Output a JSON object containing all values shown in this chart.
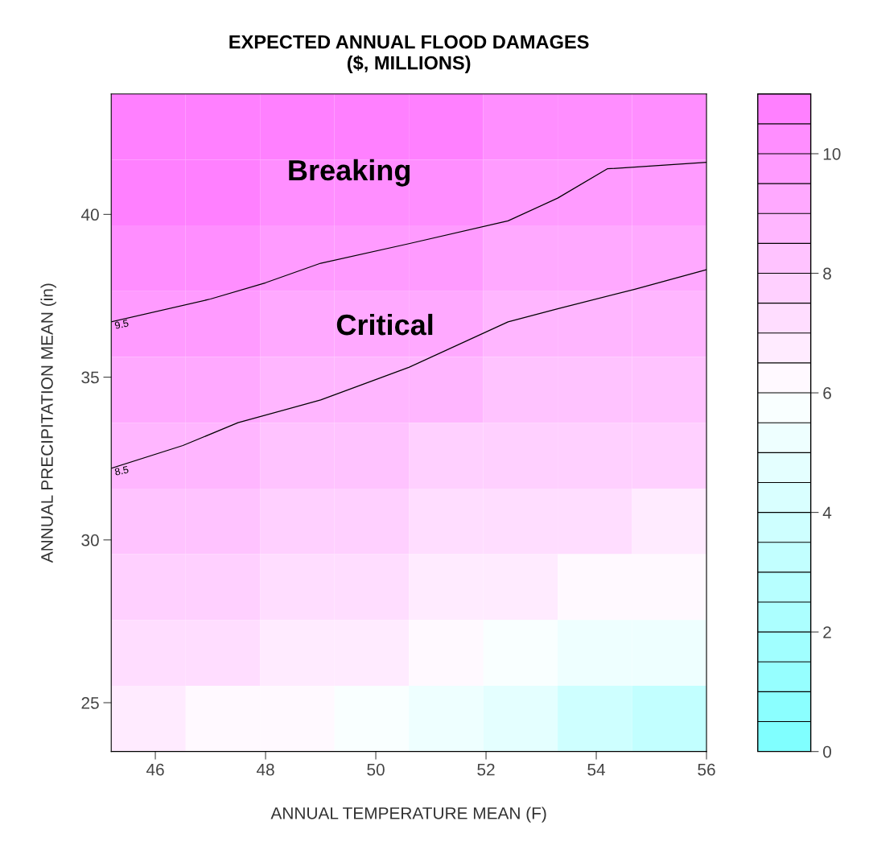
{
  "chart_data": {
    "type": "heatmap",
    "title": "EXPECTED ANNUAL FLOOD DAMAGES\n($, MILLIONS)",
    "xlabel": "ANNUAL TEMPERATURE MEAN (F)",
    "ylabel": "ANNUAL PRECIPITATION MEAN (in)",
    "x": [
      45.875,
      47.225,
      48.575,
      49.925,
      51.275,
      52.625,
      53.975,
      55.325
    ],
    "y": [
      42.69,
      40.67,
      38.65,
      36.63,
      34.61,
      32.59,
      30.57,
      28.55,
      26.53,
      24.51
    ],
    "cells": [
      [
        11,
        11,
        10.5,
        10.5,
        10.5,
        10,
        10,
        10
      ],
      [
        10.5,
        10.5,
        10,
        10,
        10,
        9.5,
        9.5,
        9.5
      ],
      [
        10,
        10,
        9.5,
        9.5,
        9.5,
        9,
        9,
        9
      ],
      [
        9.5,
        9.5,
        9,
        9,
        9,
        8.5,
        8.5,
        8.5
      ],
      [
        9,
        9,
        8.5,
        8.5,
        8.5,
        8,
        8,
        8
      ],
      [
        8.5,
        8.5,
        8,
        8,
        7.5,
        7.5,
        7.5,
        7.5
      ],
      [
        8,
        8,
        7.5,
        7.5,
        7,
        7,
        7,
        6.5
      ],
      [
        7.5,
        7.5,
        7,
        7,
        6.5,
        6.5,
        6,
        6
      ],
      [
        7,
        7,
        6.5,
        6.5,
        6,
        5.5,
        5,
        5
      ],
      [
        6.5,
        6,
        6,
        5.5,
        5,
        4.5,
        3.5,
        3
      ]
    ],
    "clim": [
      0,
      11
    ],
    "cticks": [
      0,
      2,
      4,
      6,
      8,
      10
    ],
    "xlim": [
      45.2,
      56
    ],
    "xticks": [
      46,
      48,
      50,
      52,
      54,
      56
    ],
    "ylim": [
      23.5,
      43.7
    ],
    "yticks": [
      25,
      30,
      35,
      40
    ],
    "series": [
      {
        "type": "line",
        "color": "#000000",
        "x": [
          45.2,
          47,
          48,
          49,
          50.6,
          52.4,
          53.3,
          54.2,
          56
        ],
        "values": [
          36.7,
          37.4,
          37.9,
          38.5,
          39.1,
          39.8,
          40.5,
          41.4,
          41.6
        ]
      },
      {
        "type": "line",
        "color": "#000000",
        "x": [
          45.2,
          46.5,
          47.5,
          49,
          50.6,
          52.4,
          53.3,
          54.7,
          56
        ],
        "values": [
          32.2,
          32.9,
          33.6,
          34.3,
          35.3,
          36.7,
          37.1,
          37.7,
          38.3
        ]
      }
    ],
    "annotations": [
      "9.5",
      "8.5",
      "Breaking",
      "Critical"
    ]
  }
}
